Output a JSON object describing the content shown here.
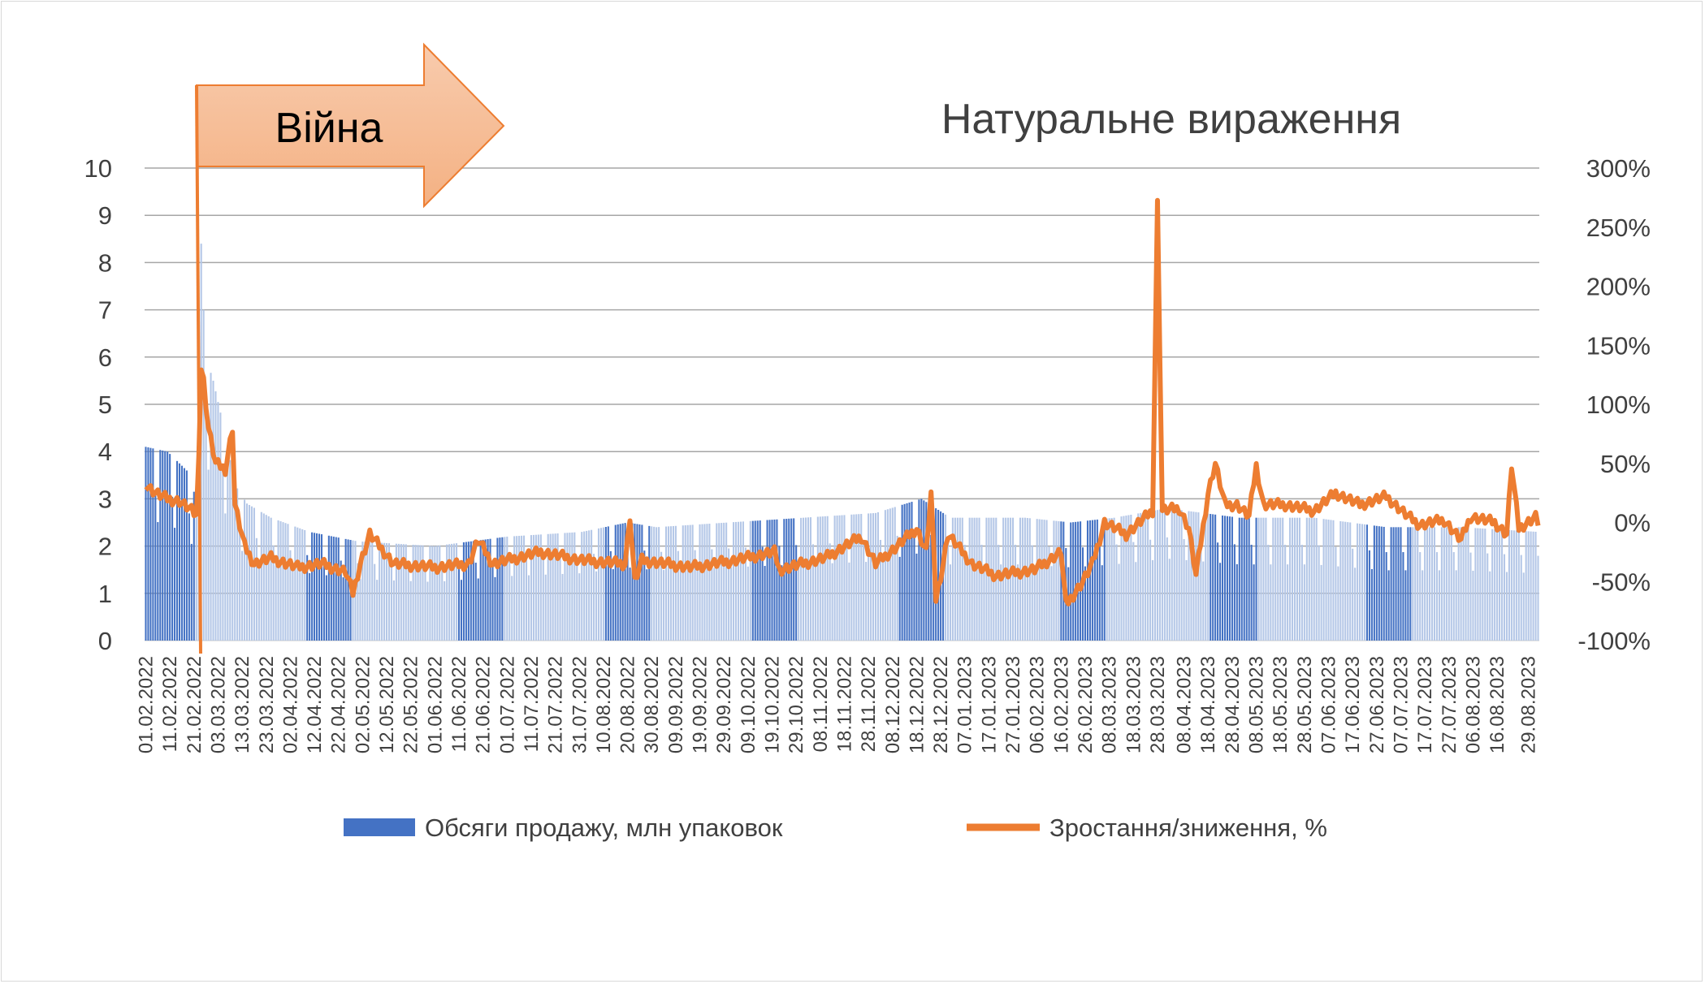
{
  "chart_data": {
    "type": "bar",
    "title": "Натуральне вираження",
    "annotation": "Війна",
    "left_axis": {
      "min": 0,
      "max": 10,
      "ticks": [
        "0",
        "1",
        "2",
        "3",
        "4",
        "5",
        "6",
        "7",
        "8",
        "9",
        "10"
      ]
    },
    "right_axis": {
      "min": -100,
      "max": 300,
      "unit": "%",
      "ticks": [
        "-100%",
        "-50%",
        "0%",
        "50%",
        "100%",
        "150%",
        "200%",
        "250%",
        "300%"
      ]
    },
    "grid": true,
    "legend_position": "bottom",
    "x_start": "01.02.2022",
    "x_end": "02.09.2023",
    "x_tick_labels": [
      "01.02.2022",
      "11.02.2022",
      "21.02.2022",
      "03.03.2022",
      "13.03.2022",
      "23.03.2022",
      "02.04.2022",
      "12.04.2022",
      "22.04.2022",
      "02.05.2022",
      "12.05.2022",
      "22.05.2022",
      "01.06.2022",
      "11.06.2022",
      "21.06.2022",
      "01.07.2022",
      "11.07.2022",
      "21.07.2022",
      "31.07.2022",
      "10.08.2022",
      "20.08.2022",
      "30.08.2022",
      "09.09.2022",
      "19.09.2022",
      "29.09.2022",
      "09.10.2022",
      "19.10.2022",
      "29.10.2022",
      "08.11.2022",
      "18.11.2022",
      "28.11.2022",
      "08.12.2022",
      "18.12.2022",
      "28.12.2022",
      "07.01.2023",
      "17.01.2023",
      "27.01.2023",
      "06.02.2023",
      "16.02.2023",
      "26.02.2023",
      "08.03.2023",
      "18.03.2023",
      "28.03.2023",
      "08.04.2023",
      "18.04.2023",
      "28.04.2023",
      "08.05.2023",
      "18.05.2023",
      "28.05.2023",
      "07.06.2023",
      "17.06.2023",
      "27.06.2023",
      "07.07.2023",
      "17.07.2023",
      "27.07.2023",
      "06.08.2023",
      "16.08.2023",
      "29.08.2023"
    ],
    "series": [
      {
        "name": "Обсяги продажу, млн упаковок",
        "type": "bar",
        "axis": "left",
        "color": "#4472c4",
        "highlight_periods": [
          [
            "01.02.2022",
            "21.02.2022"
          ],
          [
            "09.04.2022",
            "27.04.2022"
          ],
          [
            "11.06.2022",
            "29.06.2022"
          ],
          [
            "11.08.2022",
            "29.08.2022"
          ],
          [
            "11.10.2022",
            "29.10.2022"
          ],
          [
            "11.12.2022",
            "29.12.2022"
          ],
          [
            "16.02.2023",
            "06.03.2023"
          ],
          [
            "19.04.2023",
            "08.05.2023"
          ],
          [
            "23.06.2023",
            "11.07.2023"
          ]
        ],
        "points": [
          [
            "01.02.2022",
            4.1
          ],
          [
            "10.02.2022",
            4.0
          ],
          [
            "18.02.2022",
            3.6
          ],
          [
            "22.02.2022",
            3.0
          ],
          [
            "23.02.2022",
            4.2
          ],
          [
            "24.02.2022",
            8.4
          ],
          [
            "25.02.2022",
            7.0
          ],
          [
            "26.02.2022",
            6.0
          ],
          [
            "01.03.2022",
            5.5
          ],
          [
            "05.03.2022",
            4.6
          ],
          [
            "10.03.2022",
            3.3
          ],
          [
            "15.03.2022",
            2.9
          ],
          [
            "25.03.2022",
            2.6
          ],
          [
            "10.04.2022",
            2.3
          ],
          [
            "30.04.2022",
            2.1
          ],
          [
            "01.06.2022",
            2.0
          ],
          [
            "01.07.2022",
            2.2
          ],
          [
            "01.08.2022",
            2.3
          ],
          [
            "20.08.2022",
            2.5
          ],
          [
            "01.09.2022",
            2.4
          ],
          [
            "01.10.2022",
            2.5
          ],
          [
            "01.11.2022",
            2.6
          ],
          [
            "01.12.2022",
            2.7
          ],
          [
            "20.12.2022",
            3.0
          ],
          [
            "01.01.2023",
            2.6
          ],
          [
            "01.02.2023",
            2.6
          ],
          [
            "20.02.2023",
            2.5
          ],
          [
            "10.03.2023",
            2.6
          ],
          [
            "01.04.2023",
            2.8
          ],
          [
            "01.05.2023",
            2.6
          ],
          [
            "01.06.2023",
            2.6
          ],
          [
            "01.07.2023",
            2.4
          ],
          [
            "01.08.2023",
            2.4
          ],
          [
            "02.09.2023",
            2.3
          ]
        ]
      },
      {
        "name": "Зростання/зниження, %",
        "type": "line",
        "axis": "right",
        "color": "#ed7d31",
        "points": [
          [
            "01.02.2022",
            32
          ],
          [
            "05.02.2022",
            25
          ],
          [
            "10.02.2022",
            20
          ],
          [
            "15.02.2022",
            18
          ],
          [
            "20.02.2022",
            10
          ],
          [
            "22.02.2022",
            5
          ],
          [
            "23.02.2022",
            60
          ],
          [
            "24.02.2022",
            130
          ],
          [
            "25.02.2022",
            120
          ],
          [
            "27.02.2022",
            80
          ],
          [
            "02.03.2022",
            50
          ],
          [
            "06.03.2022",
            45
          ],
          [
            "09.03.2022",
            80
          ],
          [
            "10.03.2022",
            15
          ],
          [
            "14.03.2022",
            -20
          ],
          [
            "18.03.2022",
            -35
          ],
          [
            "25.03.2022",
            -30
          ],
          [
            "05.04.2022",
            -38
          ],
          [
            "15.04.2022",
            -35
          ],
          [
            "25.04.2022",
            -42
          ],
          [
            "28.04.2022",
            -60
          ],
          [
            "01.05.2022",
            -35
          ],
          [
            "05.05.2022",
            -10
          ],
          [
            "15.05.2022",
            -35
          ],
          [
            "01.06.2022",
            -38
          ],
          [
            "15.06.2022",
            -35
          ],
          [
            "19.06.2022",
            -15
          ],
          [
            "25.06.2022",
            -35
          ],
          [
            "15.07.2022",
            -25
          ],
          [
            "01.08.2022",
            -32
          ],
          [
            "19.08.2022",
            -35
          ],
          [
            "21.08.2022",
            5
          ],
          [
            "23.08.2022",
            -50
          ],
          [
            "26.08.2022",
            -32
          ],
          [
            "15.09.2022",
            -38
          ],
          [
            "01.10.2022",
            -33
          ],
          [
            "20.10.2022",
            -25
          ],
          [
            "22.10.2022",
            -40
          ],
          [
            "10.11.2022",
            -30
          ],
          [
            "25.11.2022",
            -12
          ],
          [
            "01.12.2022",
            -35
          ],
          [
            "10.12.2022",
            -20
          ],
          [
            "18.12.2022",
            -5
          ],
          [
            "22.12.2022",
            -25
          ],
          [
            "24.12.2022",
            25
          ],
          [
            "26.12.2022",
            -65
          ],
          [
            "29.12.2022",
            -35
          ],
          [
            "31.12.2022",
            -10
          ],
          [
            "10.01.2023",
            -35
          ],
          [
            "20.01.2023",
            -45
          ],
          [
            "05.02.2023",
            -40
          ],
          [
            "16.02.2023",
            -25
          ],
          [
            "18.02.2023",
            -70
          ],
          [
            "25.02.2023",
            -50
          ],
          [
            "01.03.2023",
            -35
          ],
          [
            "06.03.2023",
            0
          ],
          [
            "15.03.2023",
            -10
          ],
          [
            "26.03.2023",
            10
          ],
          [
            "28.03.2023",
            270
          ],
          [
            "30.03.2023",
            10
          ],
          [
            "06.04.2023",
            12
          ],
          [
            "10.04.2023",
            -5
          ],
          [
            "13.04.2023",
            -45
          ],
          [
            "18.04.2023",
            25
          ],
          [
            "21.04.2023",
            50
          ],
          [
            "25.04.2023",
            15
          ],
          [
            "30.04.2023",
            15
          ],
          [
            "05.05.2023",
            5
          ],
          [
            "08.05.2023",
            48
          ],
          [
            "11.05.2023",
            15
          ],
          [
            "20.05.2023",
            15
          ],
          [
            "01.06.2023",
            10
          ],
          [
            "10.06.2023",
            25
          ],
          [
            "20.06.2023",
            15
          ],
          [
            "01.07.2023",
            22
          ],
          [
            "10.07.2023",
            5
          ],
          [
            "15.07.2023",
            -2
          ],
          [
            "25.07.2023",
            2
          ],
          [
            "01.08.2023",
            -15
          ],
          [
            "05.08.2023",
            5
          ],
          [
            "15.08.2023",
            0
          ],
          [
            "20.08.2023",
            -10
          ],
          [
            "22.08.2023",
            48
          ],
          [
            "25.08.2023",
            -5
          ],
          [
            "01.09.2023",
            5
          ],
          [
            "02.09.2023",
            0
          ]
        ]
      }
    ]
  }
}
